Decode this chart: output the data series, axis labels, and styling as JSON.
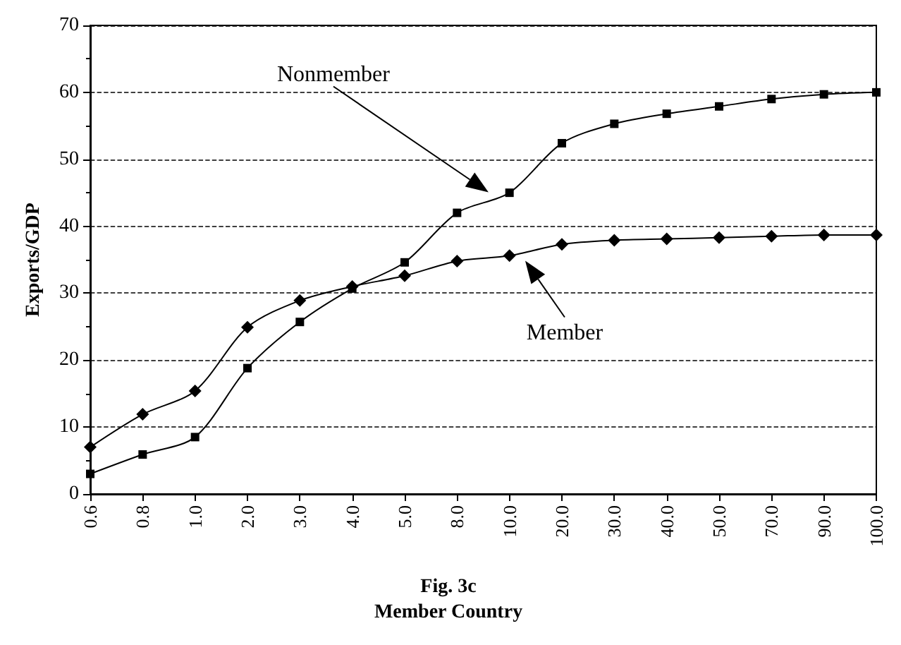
{
  "chart_data": {
    "type": "line",
    "title": "Fig. 3c",
    "xlabel": "Member Country",
    "ylabel": "Exports/GDP",
    "categories": [
      "0.6",
      "0.8",
      "1.0",
      "2.0",
      "3.0",
      "4.0",
      "5.0",
      "8.0",
      "10.0",
      "20.0",
      "30.0",
      "40.0",
      "50.0",
      "70.0",
      "90.0",
      "100.0"
    ],
    "series": [
      {
        "name": "Nonmember",
        "color": "#000000",
        "marker": "square",
        "values": [
          3.0,
          5.9,
          8.5,
          18.8,
          25.7,
          30.7,
          34.6,
          42.0,
          45.0,
          52.4,
          55.3,
          56.8,
          57.9,
          59.0,
          59.7,
          60.0
        ]
      },
      {
        "name": "Member",
        "color": "#000000",
        "marker": "diamond",
        "values": [
          7.0,
          11.9,
          15.4,
          24.9,
          28.9,
          31.0,
          32.6,
          34.8,
          35.6,
          37.3,
          37.9,
          38.1,
          38.3,
          38.5,
          38.7,
          38.7
        ]
      }
    ],
    "ylim": [
      0,
      70
    ],
    "yticks": [
      0,
      10,
      20,
      30,
      40,
      50,
      60,
      70
    ],
    "grid": "y",
    "line_style": "solid"
  }
}
